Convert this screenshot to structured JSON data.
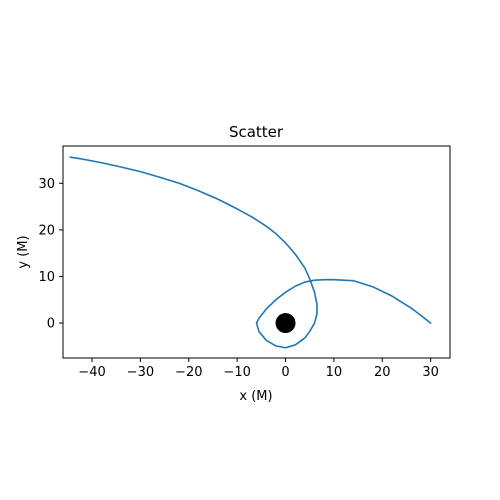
{
  "chart_data": {
    "type": "line",
    "title": "Scatter",
    "xlabel": "x (M)",
    "ylabel": "y (M)",
    "xlim": [
      -46,
      34
    ],
    "ylim": [
      -7.5,
      38
    ],
    "xticks": [
      -40,
      -30,
      -20,
      -10,
      0,
      10,
      20,
      30
    ],
    "yticks": [
      0,
      10,
      20,
      30
    ],
    "grid": false,
    "line_color": "#1f77b4",
    "marker_color": "#000000",
    "series": [
      {
        "type": "line",
        "x": [
          30,
          26,
          22,
          18,
          14,
          10,
          8,
          6,
          4,
          2,
          0,
          -2,
          -4,
          -5.5,
          -6,
          -5.5,
          -4,
          -2,
          0,
          2,
          4,
          5,
          6,
          6.5,
          6.5,
          6,
          5,
          4,
          2,
          0,
          -2,
          -4,
          -7,
          -10,
          -14,
          -18,
          -22,
          -26,
          -30,
          -34,
          -38,
          -42,
          -44.5
        ],
        "y": [
          0,
          3.2,
          5.8,
          7.8,
          9.1,
          9.3,
          9.3,
          9.2,
          8.8,
          7.9,
          6.6,
          5.0,
          3.0,
          1.0,
          0,
          -1.8,
          -3.7,
          -4.9,
          -5.3,
          -4.7,
          -3.2,
          -1.8,
          0,
          2,
          4,
          6.6,
          9.5,
          11.8,
          14.8,
          17.2,
          19.2,
          20.8,
          22.8,
          24.5,
          26.6,
          28.4,
          30.0,
          31.3,
          32.5,
          33.5,
          34.4,
          35.2,
          35.6
        ]
      },
      {
        "type": "scatter",
        "x": [
          0
        ],
        "y": [
          0
        ]
      }
    ]
  }
}
